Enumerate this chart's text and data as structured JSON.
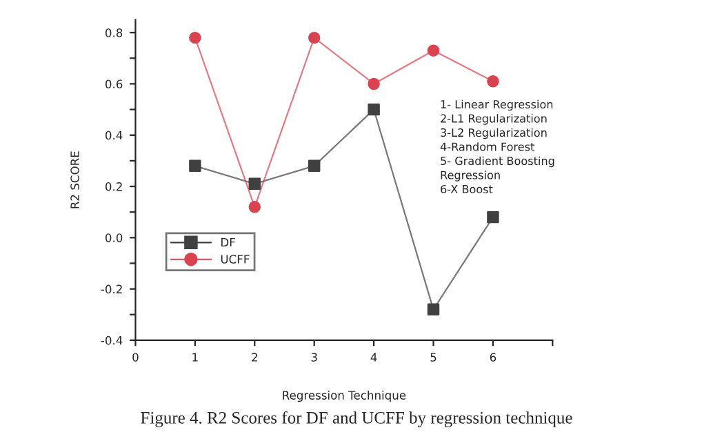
{
  "chart_data": {
    "type": "line",
    "xlabel": "Regression Technique",
    "ylabel": "R2 SCORE",
    "x": [
      1,
      2,
      3,
      4,
      5,
      6
    ],
    "series": [
      {
        "name": "DF",
        "color": "#404040",
        "marker": "square",
        "values": [
          0.28,
          0.21,
          0.28,
          0.5,
          -0.28,
          0.08
        ]
      },
      {
        "name": "UCFF",
        "color": "#d9434f",
        "marker": "circle",
        "values": [
          0.78,
          0.12,
          0.78,
          0.6,
          0.73,
          0.61
        ]
      }
    ],
    "xlim": [
      0,
      7
    ],
    "xticks": [
      0,
      1,
      2,
      3,
      4,
      5,
      6,
      {
        "value": 7,
        "label": null
      }
    ],
    "ylim": [
      -0.4,
      0.85
    ],
    "yticks": [
      {
        "value": -0.4,
        "label": "-0.4"
      },
      {
        "value": -0.3,
        "label": null
      },
      {
        "value": -0.2,
        "label": "-0.2"
      },
      {
        "value": -0.1,
        "label": null
      },
      {
        "value": 0,
        "label": "0.0"
      },
      {
        "value": 0.1,
        "label": null
      },
      {
        "value": 0.2,
        "label": "0.2"
      },
      {
        "value": 0.3,
        "label": null
      },
      {
        "value": 0.4,
        "label": "0.4"
      },
      {
        "value": 0.5,
        "label": null
      },
      {
        "value": 0.6,
        "label": "0.6"
      },
      {
        "value": 0.7,
        "label": null
      },
      {
        "value": 0.8,
        "label": "0.8"
      }
    ],
    "grid": false,
    "legend": "bottom left",
    "line_style": "solid",
    "annotations": [
      "1- Linear Regression\n2-L1 Regularization\n3-L2 Regularization\n4-Random Forest\n5- Gradient Boosting\nRegression\n6-X Boost",
      "Figure 4. R2 Scores for DF and UCFF by regression technique"
    ]
  }
}
